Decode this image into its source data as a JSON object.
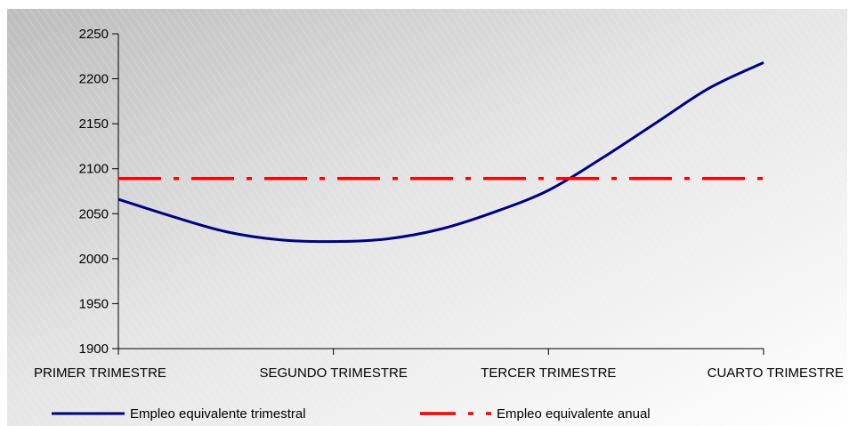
{
  "chart_data": {
    "type": "line",
    "categories": [
      "PRIMER TRIMESTRE",
      "SEGUNDO TRIMESTRE",
      "TERCER TRIMESTRE",
      "CUARTO TRIMESTRE"
    ],
    "ylim": [
      1900,
      2250
    ],
    "yticks": [
      1900,
      1950,
      2000,
      2050,
      2100,
      2150,
      2200,
      2250
    ],
    "grid": false,
    "legend": "bottom",
    "series": [
      {
        "name": "Empleo equivalente trimestral",
        "color": "#000080",
        "style": "solid",
        "x": [
          0,
          0.25,
          0.5,
          0.75,
          1,
          1.25,
          1.5,
          1.75,
          2,
          2.25,
          2.5,
          2.75,
          3
        ],
        "values": [
          2066,
          2047,
          2030,
          2021,
          2019,
          2022,
          2033,
          2052,
          2076,
          2112,
          2151,
          2190,
          2218
        ]
      },
      {
        "name": "Empleo equivalente anual",
        "color": "#ff0000",
        "style": "dash-dot",
        "x": [
          0,
          3
        ],
        "values": [
          2089,
          2089
        ]
      }
    ]
  }
}
